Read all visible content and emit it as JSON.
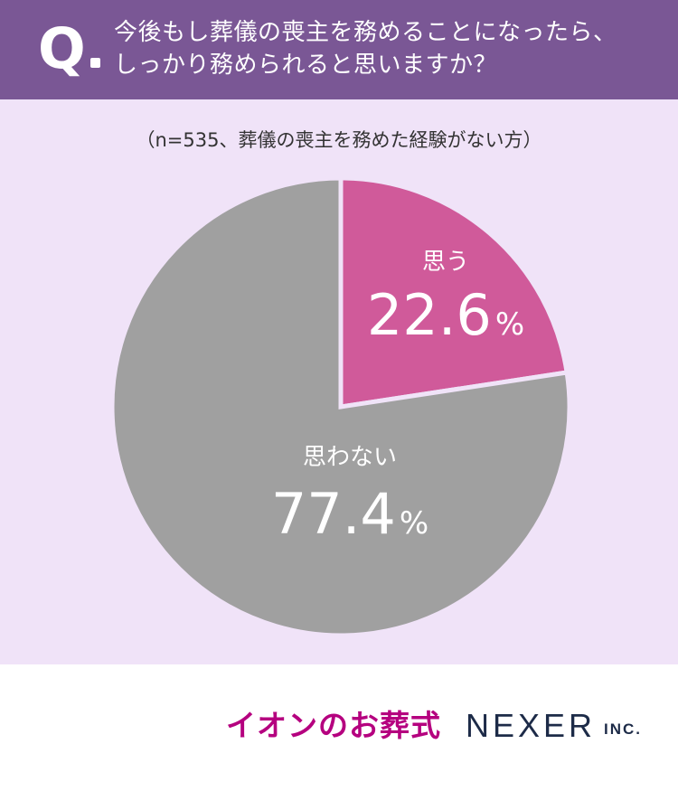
{
  "header": {
    "q_mark": "Q",
    "question_line1": "今後もし葬儀の喪主を務めることになったら、",
    "question_line2": "しっかり務められると思いますか？"
  },
  "note": "（n=535、葬儀の喪主を務めた経験がない方）",
  "colors": {
    "header_bg": "#7a5795",
    "panel_bg": "#f0e3f8",
    "slice_yes": "#d05a9a",
    "slice_no": "#a0a0a0"
  },
  "chart_data": {
    "type": "pie",
    "title": "",
    "slices": [
      {
        "label": "思う",
        "value": 22.6,
        "display": "22.6",
        "unit": "%",
        "color": "#d05a9a"
      },
      {
        "label": "思わない",
        "value": 77.4,
        "display": "77.4",
        "unit": "%",
        "color": "#a0a0a0"
      }
    ]
  },
  "logos": {
    "aeon": "イオンのお葬式",
    "nexer": "NEXER",
    "inc": "INC."
  }
}
